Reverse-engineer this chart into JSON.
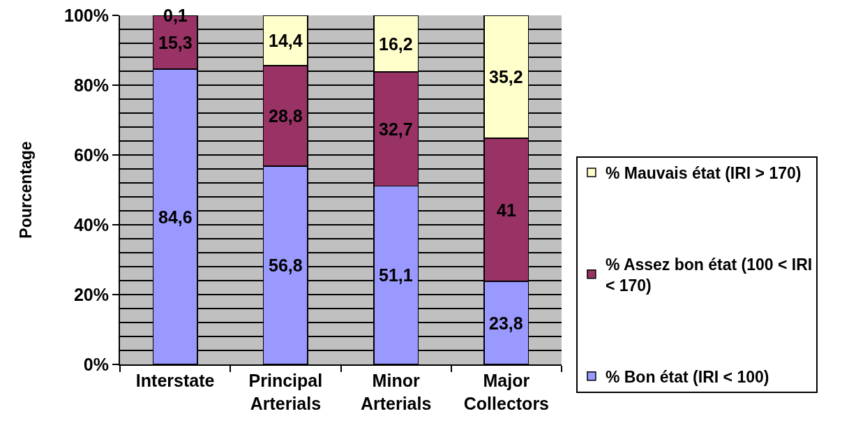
{
  "chart_data": {
    "type": "bar",
    "stacked": true,
    "ylabel": "Pourcentage",
    "categories": [
      "Interstate",
      "Principal Arterials",
      "Minor Arterials",
      "Major Collectors"
    ],
    "series": [
      {
        "name": "% Bon état (IRI < 100)",
        "color": "#9999ff",
        "values": [
          84.6,
          56.8,
          51.1,
          23.8
        ],
        "value_labels": [
          "84,6",
          "56,8",
          "51,1",
          "23,8"
        ]
      },
      {
        "name": "% Assez bon état (100 < IRI < 170)",
        "color": "#993366",
        "values": [
          15.3,
          28.8,
          32.7,
          41
        ],
        "value_labels": [
          "15,3",
          "28,8",
          "32,7",
          "41"
        ]
      },
      {
        "name": "% Mauvais état (IRI > 170)",
        "color": "#ffffcc",
        "values": [
          0.1,
          14.4,
          16.2,
          35.2
        ],
        "value_labels": [
          "0,1",
          "14,4",
          "16,2",
          "35,2"
        ]
      }
    ],
    "ylim": [
      0,
      100
    ],
    "yticks": [
      {
        "value": 0,
        "label": "0%"
      },
      {
        "value": 4,
        "label": null
      },
      {
        "value": 8,
        "label": null
      },
      {
        "value": 12,
        "label": null
      },
      {
        "value": 16,
        "label": null
      },
      {
        "value": 20,
        "label": "20%"
      },
      {
        "value": 24,
        "label": null
      },
      {
        "value": 28,
        "label": null
      },
      {
        "value": 32,
        "label": null
      },
      {
        "value": 36,
        "label": null
      },
      {
        "value": 40,
        "label": "40%"
      },
      {
        "value": 44,
        "label": null
      },
      {
        "value": 48,
        "label": null
      },
      {
        "value": 52,
        "label": null
      },
      {
        "value": 56,
        "label": null
      },
      {
        "value": 60,
        "label": "60%"
      },
      {
        "value": 64,
        "label": null
      },
      {
        "value": 68,
        "label": null
      },
      {
        "value": 72,
        "label": null
      },
      {
        "value": 76,
        "label": null
      },
      {
        "value": 80,
        "label": "80%"
      },
      {
        "value": 84,
        "label": null
      },
      {
        "value": 88,
        "label": null
      },
      {
        "value": 92,
        "label": null
      },
      {
        "value": 96,
        "label": null
      },
      {
        "value": 100,
        "label": "100%"
      }
    ],
    "grid": "y",
    "legend": "right"
  }
}
